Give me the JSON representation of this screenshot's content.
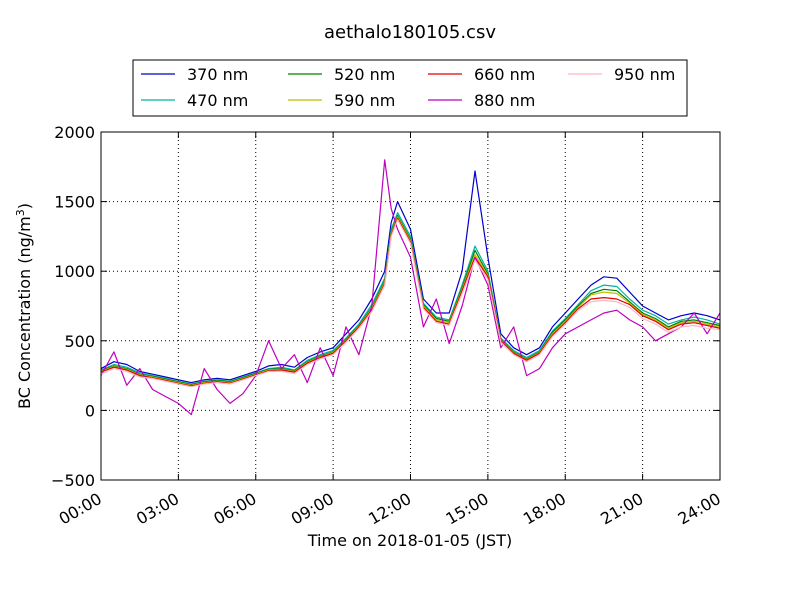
{
  "chart_data": {
    "type": "line",
    "title": "aethalo180105.csv",
    "xlabel": "Time on 2018-01-05 (JST)",
    "ylabel": "BC Concentration (ng/m",
    "ylabel_sup": "3",
    "ylabel_close": ")",
    "x_unit": "hours",
    "xlim": [
      0,
      24
    ],
    "ylim": [
      -500,
      2000
    ],
    "xticks": [
      {
        "value": 0,
        "label": "00:00"
      },
      {
        "value": 3,
        "label": "03:00"
      },
      {
        "value": 6,
        "label": "06:00"
      },
      {
        "value": 9,
        "label": "09:00"
      },
      {
        "value": 12,
        "label": "12:00"
      },
      {
        "value": 15,
        "label": "15:00"
      },
      {
        "value": 18,
        "label": "18:00"
      },
      {
        "value": 21,
        "label": "21:00"
      },
      {
        "value": 24,
        "label": "24:00"
      }
    ],
    "yticks": [
      {
        "value": -500,
        "label": "−500"
      },
      {
        "value": 0,
        "label": "0"
      },
      {
        "value": 500,
        "label": "500"
      },
      {
        "value": 1000,
        "label": "1000"
      },
      {
        "value": 1500,
        "label": "1500"
      },
      {
        "value": 2000,
        "label": "2000"
      }
    ],
    "grid": true,
    "legend_position": "top, above plot",
    "x": [
      0,
      0.5,
      1,
      1.5,
      2,
      2.5,
      3,
      3.5,
      4,
      4.5,
      5,
      5.5,
      6,
      6.5,
      7,
      7.5,
      8,
      8.5,
      9,
      9.5,
      10,
      10.5,
      11,
      11.25,
      11.5,
      12,
      12.5,
      13,
      13.5,
      14,
      14.5,
      15,
      15.5,
      16,
      16.5,
      17,
      17.5,
      18,
      18.5,
      19,
      19.5,
      20,
      20.5,
      21,
      21.5,
      22,
      22.5,
      23,
      23.5,
      24
    ],
    "series": [
      {
        "name": "370 nm",
        "color": "#0000cc",
        "values": [
          300,
          350,
          330,
          280,
          260,
          240,
          220,
          200,
          220,
          230,
          220,
          250,
          280,
          320,
          330,
          310,
          380,
          420,
          450,
          550,
          650,
          800,
          1000,
          1350,
          1500,
          1300,
          800,
          700,
          700,
          1000,
          1720,
          1100,
          550,
          450,
          400,
          450,
          600,
          700,
          800,
          900,
          960,
          950,
          850,
          750,
          700,
          650,
          680,
          700,
          680,
          650
        ]
      },
      {
        "name": "470 nm",
        "color": "#00b3a1",
        "values": [
          290,
          330,
          310,
          270,
          250,
          230,
          210,
          190,
          210,
          220,
          210,
          240,
          270,
          300,
          310,
          290,
          360,
          400,
          430,
          520,
          620,
          760,
          950,
          1300,
          1420,
          1250,
          770,
          670,
          650,
          900,
          1180,
          1000,
          520,
          430,
          380,
          430,
          570,
          660,
          760,
          860,
          900,
          890,
          800,
          720,
          680,
          620,
          650,
          670,
          650,
          620
        ]
      },
      {
        "name": "520 nm",
        "color": "#008000",
        "values": [
          285,
          320,
          300,
          260,
          245,
          225,
          205,
          185,
          205,
          215,
          205,
          235,
          265,
          295,
          300,
          285,
          350,
          390,
          420,
          510,
          610,
          740,
          930,
          1280,
          1400,
          1230,
          760,
          660,
          640,
          880,
          1150,
          980,
          510,
          420,
          370,
          420,
          560,
          650,
          750,
          840,
          870,
          860,
          780,
          700,
          660,
          600,
          640,
          650,
          630,
          610
        ]
      },
      {
        "name": "590 nm",
        "color": "#bfbf00",
        "values": [
          280,
          315,
          295,
          255,
          240,
          220,
          200,
          180,
          200,
          210,
          200,
          230,
          260,
          290,
          295,
          280,
          345,
          385,
          415,
          505,
          605,
          730,
          920,
          1270,
          1390,
          1220,
          750,
          650,
          630,
          870,
          1120,
          970,
          505,
          415,
          365,
          415,
          550,
          640,
          740,
          830,
          850,
          840,
          770,
          690,
          650,
          590,
          630,
          640,
          620,
          600
        ]
      },
      {
        "name": "660 nm",
        "color": "#e00000",
        "values": [
          275,
          310,
          290,
          250,
          235,
          215,
          195,
          175,
          195,
          205,
          195,
          225,
          255,
          285,
          290,
          275,
          340,
          380,
          410,
          500,
          600,
          720,
          910,
          1260,
          1380,
          1210,
          740,
          640,
          620,
          860,
          1100,
          960,
          500,
          410,
          360,
          410,
          540,
          630,
          730,
          800,
          810,
          800,
          760,
          680,
          640,
          580,
          620,
          630,
          610,
          590
        ]
      },
      {
        "name": "880 nm",
        "color": "#bf00bf",
        "values": [
          250,
          420,
          180,
          300,
          150,
          100,
          50,
          -30,
          300,
          150,
          50,
          120,
          250,
          500,
          300,
          400,
          200,
          450,
          250,
          600,
          400,
          750,
          1800,
          1450,
          1300,
          1100,
          600,
          800,
          480,
          750,
          1100,
          900,
          450,
          600,
          250,
          300,
          450,
          550,
          600,
          650,
          700,
          720,
          650,
          600,
          500,
          550,
          600,
          700,
          550,
          700
        ]
      },
      {
        "name": "950 nm",
        "color": "#ffb6c1",
        "values": [
          260,
          300,
          280,
          240,
          230,
          210,
          190,
          170,
          190,
          200,
          190,
          220,
          250,
          280,
          280,
          265,
          330,
          370,
          400,
          490,
          590,
          710,
          900,
          1250,
          1370,
          1200,
          730,
          630,
          610,
          840,
          1080,
          940,
          490,
          400,
          350,
          400,
          530,
          620,
          720,
          780,
          790,
          780,
          740,
          660,
          620,
          560,
          600,
          610,
          590,
          580
        ]
      }
    ]
  }
}
